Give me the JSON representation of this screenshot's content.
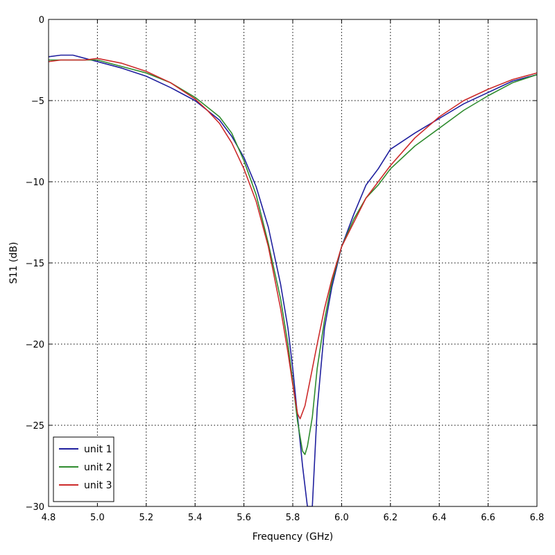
{
  "chart_data": {
    "type": "line",
    "title": "",
    "xlabel": "Frequency (GHz)",
    "ylabel": "S11 (dB)",
    "xlim": [
      4.8,
      6.8
    ],
    "ylim": [
      -30,
      0
    ],
    "xticks": [
      "4.8",
      "5.0",
      "5.2",
      "5.4",
      "5.6",
      "5.8",
      "6.0",
      "6.2",
      "6.4",
      "6.6",
      "6.8"
    ],
    "yticks": [
      "0",
      "−5",
      "−10",
      "−15",
      "−20",
      "−25",
      "−30"
    ],
    "grid": true,
    "legend_position": "lower-left",
    "series": [
      {
        "name": "unit 1",
        "color": "#1f1f9e",
        "x": [
          4.8,
          4.85,
          4.9,
          4.95,
          5.0,
          5.1,
          5.2,
          5.3,
          5.4,
          5.5,
          5.55,
          5.6,
          5.65,
          5.7,
          5.75,
          5.78,
          5.8,
          5.82,
          5.84,
          5.86,
          5.87,
          5.88,
          5.9,
          5.93,
          5.96,
          6.0,
          6.05,
          6.1,
          6.15,
          6.2,
          6.3,
          6.4,
          6.5,
          6.6,
          6.7,
          6.8
        ],
        "y": [
          -2.3,
          -2.2,
          -2.2,
          -2.4,
          -2.6,
          -3.0,
          -3.5,
          -4.2,
          -5.0,
          -6.2,
          -7.2,
          -8.5,
          -10.3,
          -12.8,
          -16.3,
          -19.0,
          -21.5,
          -24.5,
          -27.5,
          -30.0,
          -30.0,
          -30.0,
          -24.0,
          -19.0,
          -16.5,
          -14.0,
          -12.0,
          -10.2,
          -9.2,
          -8.0,
          -7.0,
          -6.1,
          -5.2,
          -4.5,
          -3.8,
          -3.4
        ]
      },
      {
        "name": "unit 2",
        "color": "#2e8b2e",
        "x": [
          4.8,
          4.85,
          4.9,
          4.95,
          5.0,
          5.1,
          5.2,
          5.3,
          5.4,
          5.5,
          5.55,
          5.6,
          5.65,
          5.7,
          5.75,
          5.78,
          5.8,
          5.82,
          5.84,
          5.85,
          5.86,
          5.88,
          5.9,
          5.93,
          5.96,
          6.0,
          6.05,
          6.1,
          6.15,
          6.2,
          6.3,
          6.4,
          6.5,
          6.6,
          6.7,
          6.8
        ],
        "y": [
          -2.5,
          -2.5,
          -2.5,
          -2.5,
          -2.5,
          -2.9,
          -3.3,
          -3.9,
          -4.8,
          -6.0,
          -7.0,
          -8.7,
          -10.8,
          -13.8,
          -17.2,
          -20.0,
          -22.3,
          -24.8,
          -26.6,
          -26.8,
          -26.3,
          -24.5,
          -21.5,
          -18.5,
          -16.2,
          -14.0,
          -12.3,
          -11.0,
          -10.2,
          -9.2,
          -7.8,
          -6.7,
          -5.6,
          -4.7,
          -3.9,
          -3.4
        ]
      },
      {
        "name": "unit 3",
        "color": "#cc2a2a",
        "x": [
          4.8,
          4.85,
          4.9,
          4.95,
          5.0,
          5.1,
          5.2,
          5.3,
          5.4,
          5.45,
          5.5,
          5.55,
          5.6,
          5.65,
          5.7,
          5.75,
          5.78,
          5.8,
          5.82,
          5.83,
          5.84,
          5.85,
          5.87,
          5.9,
          5.93,
          5.96,
          6.0,
          6.05,
          6.1,
          6.15,
          6.2,
          6.3,
          6.4,
          6.5,
          6.6,
          6.7,
          6.8
        ],
        "y": [
          -2.6,
          -2.5,
          -2.5,
          -2.5,
          -2.4,
          -2.7,
          -3.2,
          -3.9,
          -4.9,
          -5.6,
          -6.4,
          -7.6,
          -9.2,
          -11.2,
          -14.0,
          -17.8,
          -20.5,
          -22.5,
          -24.3,
          -24.6,
          -24.2,
          -23.8,
          -22.3,
          -20.0,
          -17.8,
          -16.0,
          -14.0,
          -12.5,
          -11.0,
          -10.0,
          -9.0,
          -7.3,
          -6.0,
          -5.0,
          -4.3,
          -3.7,
          -3.3
        ]
      }
    ]
  }
}
